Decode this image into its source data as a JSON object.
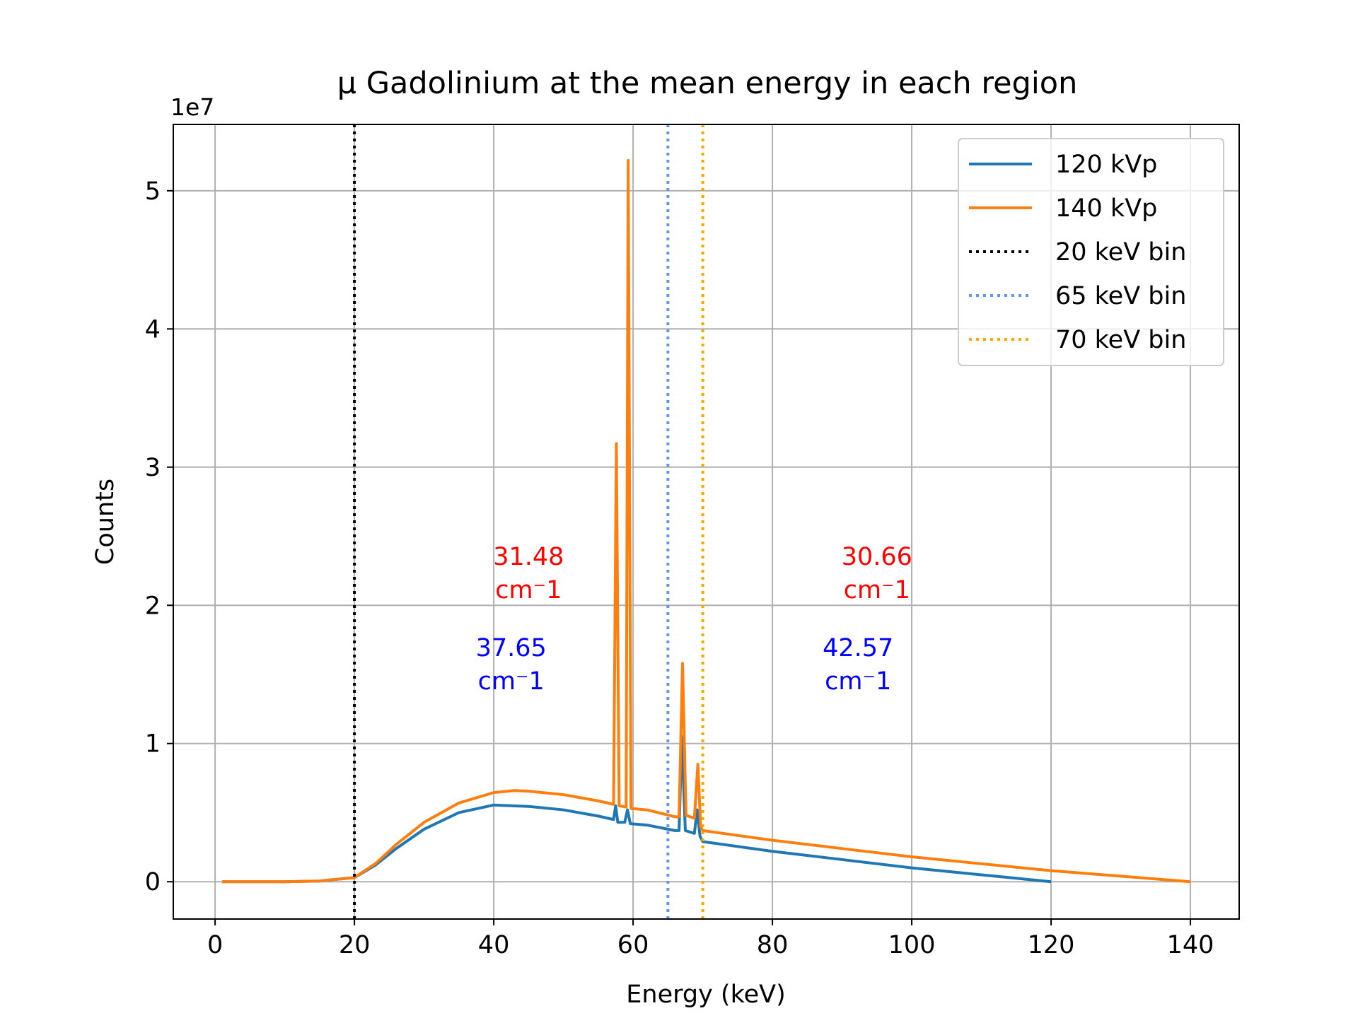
{
  "chart_data": {
    "type": "line",
    "title": "μ Gadolinium at the mean energy in each region",
    "offset_label": "1e7",
    "xlabel": "Energy (keV)",
    "ylabel": "Counts",
    "xlim": [
      -6,
      147
    ],
    "ylim": [
      -0.27,
      5.48
    ],
    "xticks": [
      0,
      20,
      40,
      60,
      80,
      100,
      120,
      140
    ],
    "yticks": [
      0,
      1,
      2,
      3,
      4,
      5
    ],
    "grid": true,
    "legend": "upper right",
    "series": [
      {
        "name": "120 kVp",
        "color": "#1f77b4",
        "x": [
          1,
          5,
          10,
          15,
          17,
          20,
          23,
          26,
          30,
          35,
          40,
          45,
          50,
          55,
          57.2,
          57.5,
          57.8,
          58.8,
          59.2,
          59.6,
          62,
          66,
          66.6,
          67,
          67.5,
          68.8,
          69.2,
          69.6,
          70,
          80,
          90,
          100,
          110,
          120
        ],
        "values": [
          0,
          0,
          0,
          0.005,
          0.015,
          0.03,
          0.12,
          0.24,
          0.38,
          0.5,
          0.555,
          0.545,
          0.52,
          0.475,
          0.45,
          0.55,
          0.43,
          0.43,
          0.52,
          0.42,
          0.41,
          0.37,
          0.37,
          1.05,
          0.37,
          0.35,
          0.52,
          0.33,
          0.29,
          0.22,
          0.16,
          0.1,
          0.05,
          0
        ]
      },
      {
        "name": "140 kVp",
        "color": "#ff7f0e",
        "x": [
          1,
          5,
          10,
          15,
          17,
          20,
          23,
          26,
          30,
          35,
          40,
          43,
          45,
          50,
          55,
          57.2,
          57.6,
          58,
          59,
          59.3,
          59.7,
          62,
          66,
          66.6,
          67.1,
          67.6,
          68.8,
          69.3,
          69.7,
          70,
          80,
          90,
          100,
          110,
          120,
          130,
          140
        ],
        "values": [
          0,
          0,
          0,
          0.005,
          0.015,
          0.03,
          0.13,
          0.27,
          0.43,
          0.57,
          0.645,
          0.66,
          0.655,
          0.63,
          0.585,
          0.56,
          3.17,
          0.55,
          0.54,
          5.22,
          0.53,
          0.52,
          0.47,
          0.47,
          1.58,
          0.48,
          0.46,
          0.85,
          0.4,
          0.37,
          0.3,
          0.24,
          0.18,
          0.13,
          0.08,
          0.04,
          0
        ]
      }
    ],
    "vlines": [
      {
        "name": "20 keV bin",
        "x": 20,
        "color": "#000000"
      },
      {
        "name": "65 keV bin",
        "x": 65,
        "color": "#6495ed"
      },
      {
        "name": "70 keV bin",
        "x": 70,
        "color": "#ffa500"
      }
    ],
    "annotations": [
      {
        "text": [
          "31.48",
          "cm⁻1"
        ],
        "color": "#ff0000"
      },
      {
        "text": [
          "30.66",
          "cm⁻1"
        ],
        "color": "#ff0000"
      },
      {
        "text": [
          "37.65",
          "cm⁻1"
        ],
        "color": "#0000ff"
      },
      {
        "text": [
          "42.57",
          "cm⁻1"
        ],
        "color": "#0000ff"
      }
    ]
  }
}
